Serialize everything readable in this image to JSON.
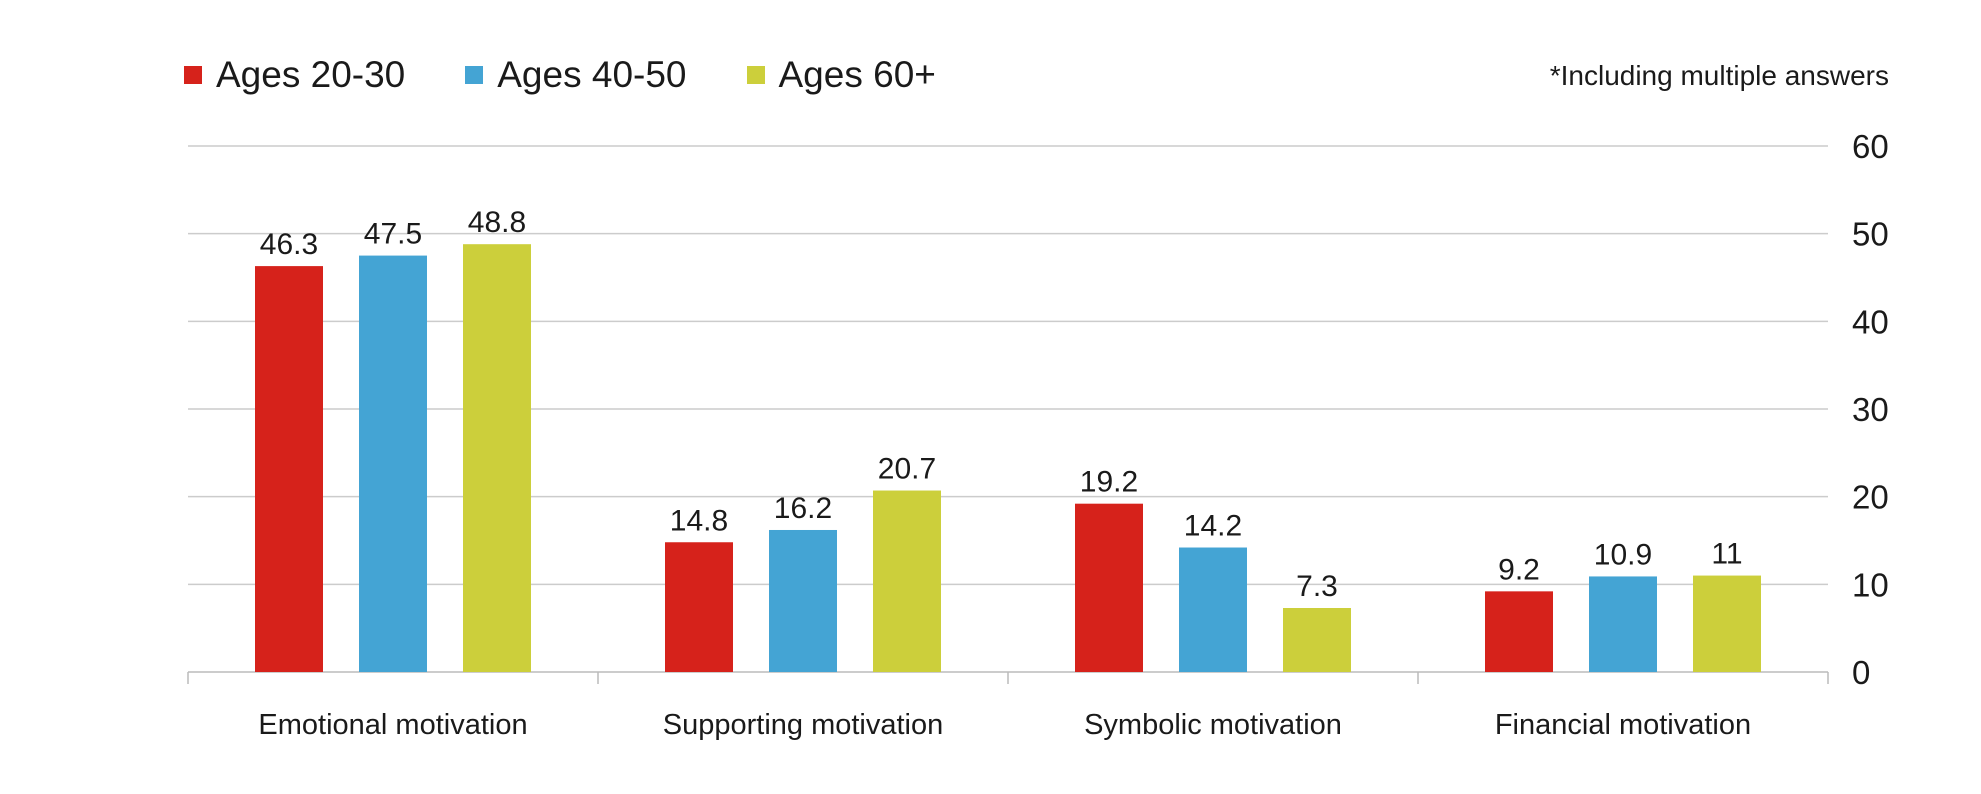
{
  "note": "*Including multiple answers",
  "chart_data": {
    "type": "bar",
    "title": "",
    "xlabel": "",
    "ylabel": "",
    "categories": [
      "Emotional motivation",
      "Supporting motivation",
      "Symbolic motivation",
      "Financial motivation"
    ],
    "series": [
      {
        "name": "Ages 20-30",
        "color": "#d6221b",
        "values": [
          46.3,
          14.8,
          19.2,
          9.2
        ]
      },
      {
        "name": "Ages 40-50",
        "color": "#44a4d4",
        "values": [
          47.5,
          16.2,
          14.2,
          10.9
        ]
      },
      {
        "name": "Ages 60+",
        "color": "#cccf3b",
        "values": [
          48.8,
          20.7,
          7.3,
          11
        ]
      }
    ],
    "ylim": [
      0,
      60
    ],
    "yticks": [
      0,
      10,
      20,
      30,
      40,
      50,
      60
    ],
    "y_axis_position": "right",
    "grid": true,
    "legend_position": "top-left",
    "data_labels": true
  }
}
